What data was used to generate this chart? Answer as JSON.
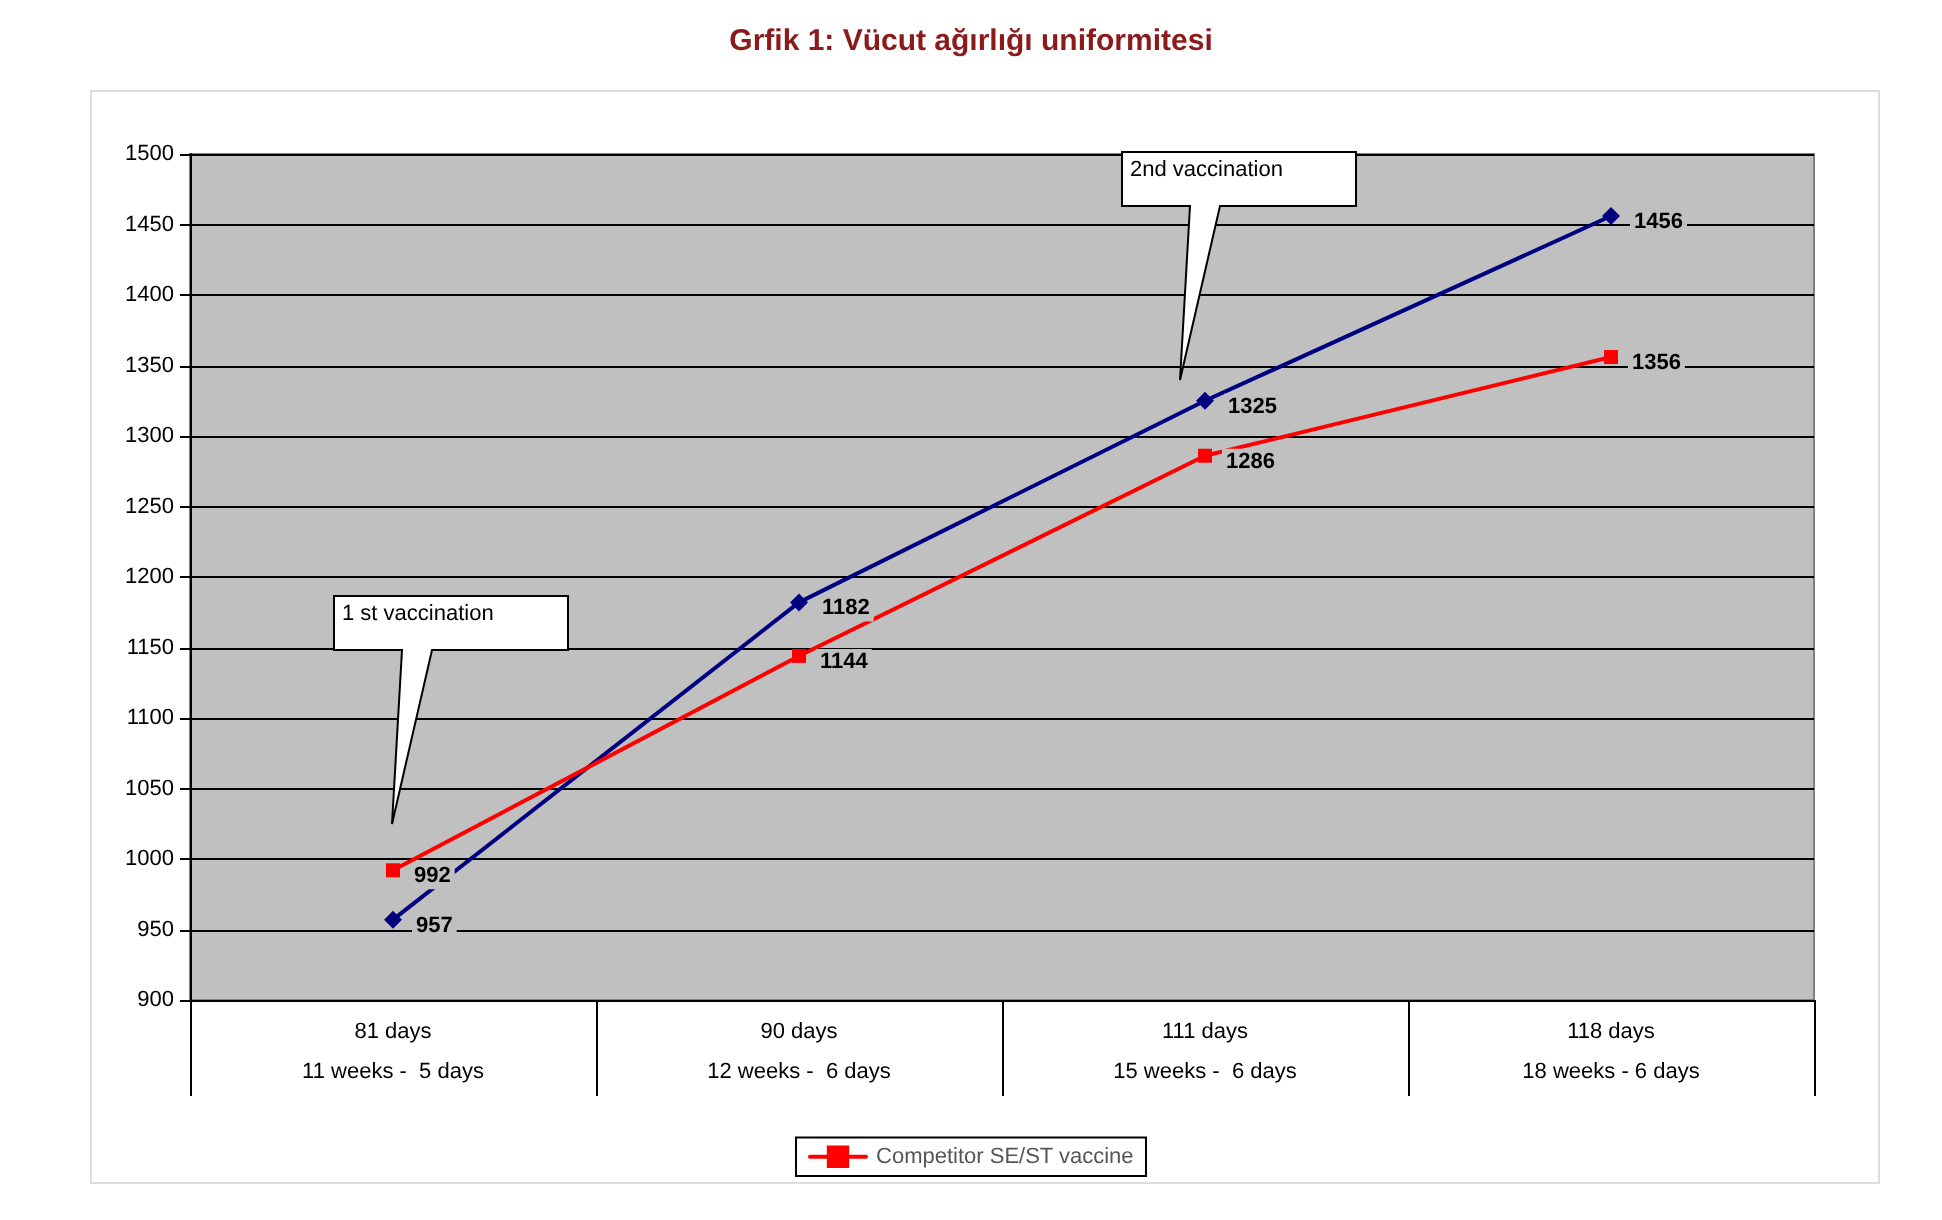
{
  "chart_data": {
    "type": "line",
    "title": "Grfik 1: Vücut ağırlığı uniformitesi",
    "categories": [
      "81 days\n11 weeks -  5 days",
      "90 days\n12 weeks -  6 days",
      "111 days\n15 weeks -  6 days",
      "118 days\n18 weeks - 6 days"
    ],
    "series": [
      {
        "color": "#000080",
        "marker": "diamond",
        "values": [
          957,
          1182,
          1325,
          1456
        ]
      },
      {
        "name": "Competitor SE/ST vaccine",
        "color": "#ff0000",
        "marker": "square",
        "values": [
          992,
          1144,
          1286,
          1356
        ]
      }
    ],
    "ylim": [
      900,
      1500
    ],
    "yticks": [
      900,
      950,
      1000,
      1050,
      1100,
      1150,
      1200,
      1250,
      1300,
      1350,
      1400,
      1450,
      1500
    ],
    "grid": "y",
    "legend": "bottom",
    "data_labels": true,
    "annotations": [
      "1 st vaccination",
      "2nd vaccination"
    ]
  }
}
